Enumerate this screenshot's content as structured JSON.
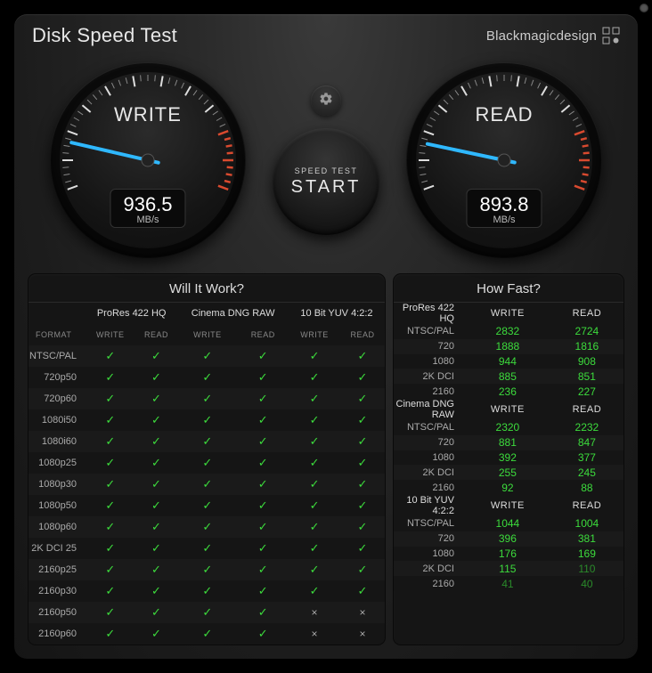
{
  "header": {
    "title": "Disk Speed Test",
    "brand": "Blackmagicdesign"
  },
  "gauges": {
    "write": {
      "label": "WRITE",
      "value": "936.5",
      "unit": "MB/s",
      "needle_angle": -167,
      "needle_color": "#2fb8ff"
    },
    "read": {
      "label": "READ",
      "value": "893.8",
      "unit": "MB/s",
      "needle_angle": -168,
      "needle_color": "#2fb8ff"
    },
    "tick_color": "#888",
    "major_tick_color": "#ddd",
    "red_zone_color": "#d94a2f",
    "bg_outer": "#141414",
    "bg_inner": "#2b2b2b"
  },
  "start": {
    "small": "SPEED TEST",
    "big": "START"
  },
  "left_panel": {
    "title": "Will It Work?",
    "format_header": "FORMAT",
    "write_header": "WRITE",
    "read_header": "READ",
    "groups": [
      "ProRes 422 HQ",
      "Cinema DNG RAW",
      "10 Bit YUV 4:2:2"
    ],
    "formats": [
      "NTSC/PAL",
      "720p50",
      "720p60",
      "1080i50",
      "1080i60",
      "1080p25",
      "1080p30",
      "1080p50",
      "1080p60",
      "2K DCI 25",
      "2160p25",
      "2160p30",
      "2160p50",
      "2160p60"
    ],
    "results": [
      [
        true,
        true,
        true,
        true,
        true,
        true
      ],
      [
        true,
        true,
        true,
        true,
        true,
        true
      ],
      [
        true,
        true,
        true,
        true,
        true,
        true
      ],
      [
        true,
        true,
        true,
        true,
        true,
        true
      ],
      [
        true,
        true,
        true,
        true,
        true,
        true
      ],
      [
        true,
        true,
        true,
        true,
        true,
        true
      ],
      [
        true,
        true,
        true,
        true,
        true,
        true
      ],
      [
        true,
        true,
        true,
        true,
        true,
        true
      ],
      [
        true,
        true,
        true,
        true,
        true,
        true
      ],
      [
        true,
        true,
        true,
        true,
        true,
        true
      ],
      [
        true,
        true,
        true,
        true,
        true,
        true
      ],
      [
        true,
        true,
        true,
        true,
        true,
        true
      ],
      [
        true,
        true,
        true,
        true,
        false,
        false
      ],
      [
        true,
        true,
        true,
        true,
        false,
        false
      ]
    ]
  },
  "right_panel": {
    "title": "How Fast?",
    "write_header": "WRITE",
    "read_header": "READ",
    "resolutions": [
      "NTSC/PAL",
      "720",
      "1080",
      "2K DCI",
      "2160"
    ],
    "sections": [
      {
        "name": "ProRes 422 HQ",
        "rows": [
          {
            "w": "2832",
            "r": "2724",
            "wc": "bright",
            "rc": "bright"
          },
          {
            "w": "1888",
            "r": "1816",
            "wc": "bright",
            "rc": "bright"
          },
          {
            "w": "944",
            "r": "908",
            "wc": "bright",
            "rc": "bright"
          },
          {
            "w": "885",
            "r": "851",
            "wc": "bright",
            "rc": "bright"
          },
          {
            "w": "236",
            "r": "227",
            "wc": "bright",
            "rc": "bright"
          }
        ]
      },
      {
        "name": "Cinema DNG RAW",
        "rows": [
          {
            "w": "2320",
            "r": "2232",
            "wc": "bright",
            "rc": "bright"
          },
          {
            "w": "881",
            "r": "847",
            "wc": "bright",
            "rc": "bright"
          },
          {
            "w": "392",
            "r": "377",
            "wc": "bright",
            "rc": "bright"
          },
          {
            "w": "255",
            "r": "245",
            "wc": "bright",
            "rc": "bright"
          },
          {
            "w": "92",
            "r": "88",
            "wc": "bright",
            "rc": "bright"
          }
        ]
      },
      {
        "name": "10 Bit YUV 4:2:2",
        "rows": [
          {
            "w": "1044",
            "r": "1004",
            "wc": "bright",
            "rc": "bright"
          },
          {
            "w": "396",
            "r": "381",
            "wc": "bright",
            "rc": "bright"
          },
          {
            "w": "176",
            "r": "169",
            "wc": "bright",
            "rc": "bright"
          },
          {
            "w": "115",
            "r": "110",
            "wc": "bright",
            "rc": "dim"
          },
          {
            "w": "41",
            "r": "40",
            "wc": "dim",
            "rc": "dim"
          }
        ]
      }
    ]
  },
  "colors": {
    "accent_green": "#3cdb3c",
    "dim_green": "#2a8a2a",
    "bg": "#1c1c1c"
  }
}
